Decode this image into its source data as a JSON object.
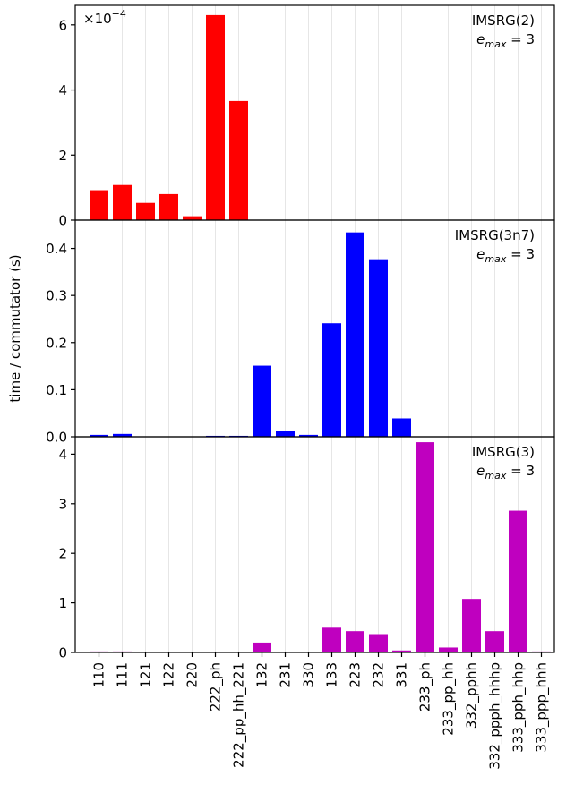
{
  "chart_data": {
    "type": "bar",
    "ylabel": "time / commutator (s)",
    "categories": [
      "110",
      "111",
      "121",
      "122",
      "220",
      "222_ph",
      "222_pp_hh_221",
      "132",
      "231",
      "330",
      "133",
      "223",
      "232",
      "331",
      "233_ph",
      "233_pp_hh",
      "332_pphh",
      "332_ppph_hhhp",
      "333_pph_hhp",
      "333_ppp_hhh"
    ],
    "grid": "vertical",
    "panels": [
      {
        "label": "IMSRG(2)",
        "emax_label": "e",
        "emax_sub": "max",
        "emax_value": " = 3",
        "scale_text": "×10",
        "scale_exp": "−4",
        "color": "#ff0000",
        "ylim": [
          0,
          6.6
        ],
        "yticks": [
          0,
          2,
          4,
          6
        ],
        "ytick_labels": [
          "0",
          "2",
          "4",
          "6"
        ],
        "values": [
          0.92,
          1.08,
          0.53,
          0.8,
          0.12,
          6.3,
          3.66,
          null,
          null,
          null,
          null,
          null,
          null,
          null,
          null,
          null,
          null,
          null,
          null,
          null
        ]
      },
      {
        "label": "IMSRG(3n7)",
        "emax_label": "e",
        "emax_sub": "max",
        "emax_value": " = 3",
        "color": "#0000ff",
        "ylim": [
          0,
          0.46
        ],
        "yticks": [
          0,
          0.1,
          0.2,
          0.3,
          0.4
        ],
        "ytick_labels": [
          "0.0",
          "0.1",
          "0.2",
          "0.3",
          "0.4"
        ],
        "values": [
          0.004,
          0.006,
          0.0,
          0.0,
          0.0,
          0.002,
          0.002,
          0.151,
          0.013,
          0.004,
          0.241,
          0.434,
          0.377,
          0.039,
          null,
          null,
          null,
          null,
          null,
          null
        ]
      },
      {
        "label": "IMSRG(3)",
        "emax_label": "e",
        "emax_sub": "max",
        "emax_value": " = 3",
        "color": "#bf00bf",
        "ylim": [
          0,
          4.35
        ],
        "yticks": [
          0,
          1,
          2,
          3,
          4
        ],
        "ytick_labels": [
          "0",
          "1",
          "2",
          "3",
          "4"
        ],
        "values": [
          0.02,
          0.02,
          0.0,
          0.0,
          0.0,
          0.0,
          0.0,
          0.2,
          0.0,
          0.0,
          0.5,
          0.43,
          0.37,
          0.04,
          4.24,
          0.1,
          1.08,
          0.43,
          2.86,
          0.02
        ]
      }
    ]
  }
}
